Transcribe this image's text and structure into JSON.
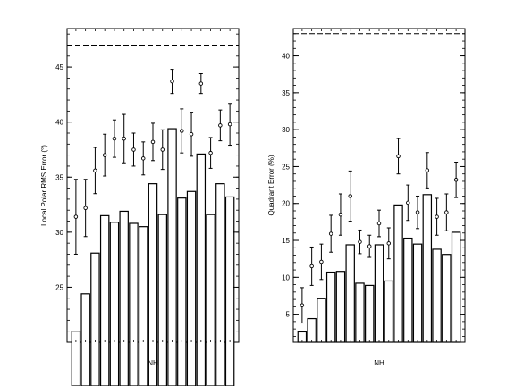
{
  "chart_data": [
    {
      "type": "bar",
      "ylabel": "Local Polar RMS Error (°)",
      "xlabel": "NH",
      "ylim": [
        20,
        48.5
      ],
      "yticks": [
        25,
        30,
        35,
        40,
        45
      ],
      "reference_line": 47,
      "bar_values": [
        21.0,
        24.4,
        28.1,
        31.5,
        30.9,
        31.9,
        30.8,
        30.5,
        34.4,
        31.6,
        39.4,
        33.1,
        33.7,
        37.1,
        31.6,
        34.4,
        33.2
      ],
      "points": [
        {
          "value": 31.4,
          "error": 3.4
        },
        {
          "value": 32.2,
          "error": 2.6
        },
        {
          "value": 35.6,
          "error": 2.1
        },
        {
          "value": 37.0,
          "error": 1.9
        },
        {
          "value": 38.5,
          "error": 1.7
        },
        {
          "value": 38.5,
          "error": 2.2
        },
        {
          "value": 37.5,
          "error": 1.5
        },
        {
          "value": 36.7,
          "error": 1.5
        },
        {
          "value": 38.2,
          "error": 1.7
        },
        {
          "value": 37.5,
          "error": 1.8
        },
        {
          "value": 43.7,
          "error": 1.1
        },
        {
          "value": 39.2,
          "error": 2.0
        },
        {
          "value": 38.9,
          "error": 2.0
        },
        {
          "value": 43.5,
          "error": 0.9
        },
        {
          "value": 37.2,
          "error": 1.4
        },
        {
          "value": 39.7,
          "error": 1.4
        },
        {
          "value": 39.8,
          "error": 1.9
        }
      ]
    },
    {
      "type": "bar",
      "ylabel": "Quadrant Error (%)",
      "xlabel": "NH",
      "ylim": [
        1.2,
        43.7
      ],
      "yticks": [
        5,
        10,
        15,
        20,
        25,
        30,
        35,
        40
      ],
      "reference_line": 43,
      "bar_values": [
        2.6,
        4.4,
        7.1,
        10.7,
        10.8,
        14.4,
        9.2,
        8.9,
        14.4,
        9.5,
        19.8,
        15.3,
        14.5,
        21.2,
        13.8,
        13.1,
        16.1
      ],
      "points": [
        {
          "value": 6.2,
          "error": 2.4
        },
        {
          "value": 11.5,
          "error": 2.6
        },
        {
          "value": 12.1,
          "error": 2.4
        },
        {
          "value": 15.9,
          "error": 2.5
        },
        {
          "value": 18.5,
          "error": 2.8
        },
        {
          "value": 21.0,
          "error": 3.4
        },
        {
          "value": 14.8,
          "error": 1.6
        },
        {
          "value": 14.2,
          "error": 1.5
        },
        {
          "value": 17.3,
          "error": 1.8
        },
        {
          "value": 14.6,
          "error": 2.1
        },
        {
          "value": 26.4,
          "error": 2.4
        },
        {
          "value": 20.1,
          "error": 2.4
        },
        {
          "value": 18.8,
          "error": 2.2
        },
        {
          "value": 24.5,
          "error": 2.4
        },
        {
          "value": 18.2,
          "error": 2.5
        },
        {
          "value": 18.8,
          "error": 2.5
        },
        {
          "value": 23.2,
          "error": 2.4
        }
      ]
    }
  ]
}
